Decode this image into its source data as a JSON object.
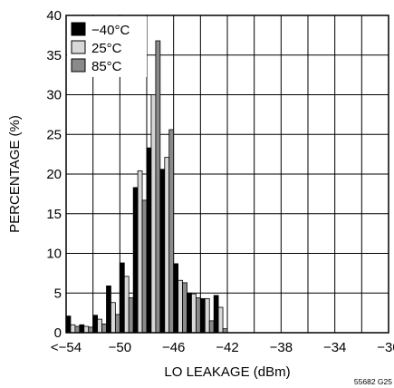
{
  "chart_data": {
    "type": "bar",
    "xlabel": "LO LEAKAGE (dBm)",
    "ylabel": "PERCENTAGE (%)",
    "xlim": [
      -54,
      -30
    ],
    "ylim": [
      0,
      40
    ],
    "x_tick_labels": [
      "<−54",
      "−50",
      "−46",
      "−42",
      "−38",
      "−34",
      "−30"
    ],
    "y_tick_labels": [
      "0",
      "5",
      "10",
      "15",
      "20",
      "25",
      "30",
      "35",
      "40"
    ],
    "x_ticks": [
      -54,
      -50,
      -46,
      -42,
      -38,
      -34,
      -30
    ],
    "y_ticks": [
      0,
      5,
      10,
      15,
      20,
      25,
      30,
      35,
      40
    ],
    "grid": true,
    "legend_position": "top-left",
    "bin_starts": [
      -54,
      -53,
      -52,
      -51,
      -50,
      -49,
      -48,
      -47,
      -46,
      -45,
      -44,
      -43,
      -42,
      -41,
      -40,
      -39,
      -38,
      -37,
      -36,
      -35,
      -34,
      -33,
      -32
    ],
    "series": [
      {
        "name": "−40°C",
        "color": "#000000",
        "values": [
          2.1,
          1.0,
          2.2,
          5.9,
          8.8,
          18.3,
          23.3,
          20.6,
          8.7,
          5.0,
          4.3,
          4.7,
          0.0,
          0.0,
          0.0,
          0.0,
          0.0,
          0.0,
          0.0,
          0.0,
          0.0,
          0.0,
          0.0
        ]
      },
      {
        "name": "25°C",
        "color": "#d8d8d8",
        "values": [
          1.0,
          0.8,
          1.7,
          3.8,
          7.1,
          20.4,
          30.0,
          22.1,
          6.6,
          4.9,
          4.3,
          3.2,
          0.0,
          0.0,
          0.0,
          0.0,
          0.0,
          0.0,
          0.0,
          0.0,
          0.0,
          0.0,
          0.0
        ]
      },
      {
        "name": "85°C",
        "color": "#8a8a8a",
        "values": [
          0.8,
          0.7,
          1.1,
          2.3,
          4.4,
          16.7,
          36.8,
          25.6,
          6.3,
          4.4,
          1.5,
          0.5,
          0.0,
          0.0,
          0.0,
          0.0,
          0.0,
          0.0,
          0.0,
          0.0,
          0.0,
          0.0,
          0.0
        ]
      }
    ],
    "footnote": "55682 G25"
  }
}
